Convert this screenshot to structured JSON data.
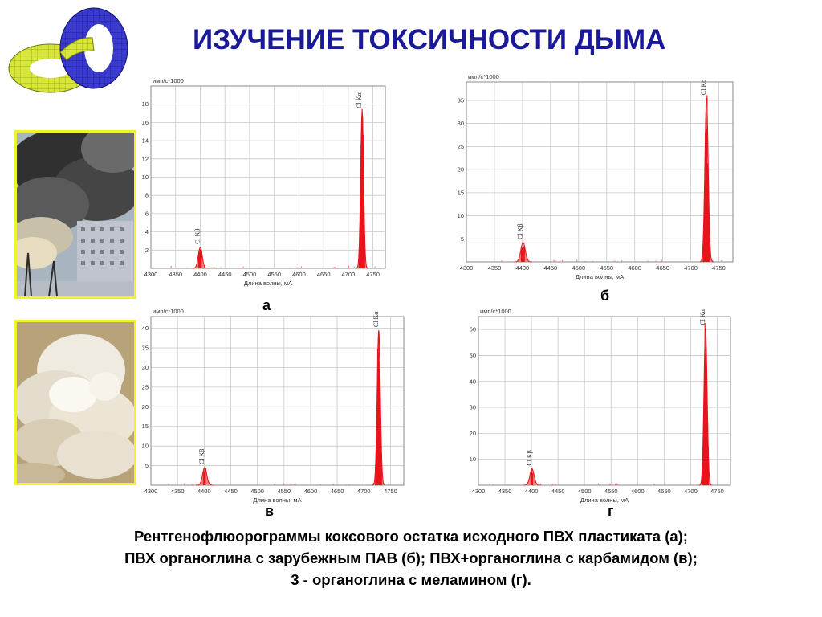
{
  "slide": {
    "title": "ИЗУЧЕНИЕ ТОКСИЧНОСТИ ДЫМА",
    "caption_lines": [
      "Рентгенофлюорограммы коксового остатка исходного ПВХ пластиката (а);",
      "ПВХ органоглина с зарубежным ПАВ (б); ПВХ+органоглина с карбамидом (в);",
      "3 - органоглина с меламином (г)."
    ],
    "photos": [
      {
        "name": "dark-smoke-photo",
        "subject": "dark smoke plume over building"
      },
      {
        "name": "light-smoke-photo",
        "subject": "light grey smoke cloud"
      }
    ],
    "logo_icon": "interlocked-torus-logo-icon"
  },
  "colors": {
    "title": "#1a1a99",
    "peak_fill": "#e8141c",
    "peak_light": "#f08080",
    "grid": "#c8c8c8",
    "photo_border": "#f2f22a"
  },
  "chart_data": [
    {
      "type": "spectrum",
      "panel_label": "а",
      "y_unit_label": "имп/с*1000",
      "xlabel": "Длина волны, мА",
      "xlim": [
        4300,
        4775
      ],
      "x_ticks": [
        4300,
        4350,
        4400,
        4450,
        4500,
        4550,
        4600,
        4650,
        4700,
        4750
      ],
      "ylim": [
        0,
        20
      ],
      "y_ticks": [
        2,
        4,
        6,
        8,
        10,
        12,
        14,
        16,
        18
      ],
      "peaks": [
        {
          "label": "Cl Kβ",
          "x": 4400,
          "y": 2.3,
          "sigma": 4
        },
        {
          "label": "Cl Kα",
          "x": 4728,
          "y": 17.2,
          "sigma": 3
        }
      ]
    },
    {
      "type": "spectrum",
      "panel_label": "б",
      "y_unit_label": "имп/с*1000",
      "xlabel": "Длина волны, мА",
      "xlim": [
        4300,
        4775
      ],
      "x_ticks": [
        4300,
        4350,
        4400,
        4450,
        4500,
        4550,
        4600,
        4650,
        4700,
        4750
      ],
      "ylim": [
        0,
        39
      ],
      "y_ticks": [
        5,
        10,
        15,
        20,
        25,
        30,
        35
      ],
      "peaks": [
        {
          "label": "Cl Kβ",
          "x": 4401,
          "y": 4.2,
          "sigma": 4
        },
        {
          "label": "Cl Kα",
          "x": 4728,
          "y": 35.5,
          "sigma": 3
        }
      ]
    },
    {
      "type": "spectrum",
      "panel_label": "в",
      "y_unit_label": "имп/с*1000",
      "xlabel": "Длина волны, мА",
      "xlim": [
        4300,
        4775
      ],
      "x_ticks": [
        4300,
        4350,
        4400,
        4450,
        4500,
        4550,
        4600,
        4650,
        4700,
        4750
      ],
      "ylim": [
        0,
        43
      ],
      "y_ticks": [
        5,
        10,
        15,
        20,
        25,
        30,
        35,
        40
      ],
      "peaks": [
        {
          "label": "Cl Kβ",
          "x": 4401,
          "y": 4.5,
          "sigma": 4
        },
        {
          "label": "Cl Kα",
          "x": 4728,
          "y": 39.5,
          "sigma": 3
        }
      ]
    },
    {
      "type": "spectrum",
      "panel_label": "г",
      "y_unit_label": "имп/с*1000",
      "xlabel": "Длина волны, мА",
      "xlim": [
        4300,
        4775
      ],
      "x_ticks": [
        4300,
        4350,
        4400,
        4450,
        4500,
        4550,
        4600,
        4650,
        4700,
        4750
      ],
      "ylim": [
        0,
        65
      ],
      "y_ticks": [
        10,
        20,
        30,
        40,
        50,
        60
      ],
      "peaks": [
        {
          "label": "Cl Kβ",
          "x": 4401,
          "y": 6.3,
          "sigma": 4
        },
        {
          "label": "Cl Kα",
          "x": 4728,
          "y": 60.5,
          "sigma": 3
        }
      ]
    }
  ]
}
